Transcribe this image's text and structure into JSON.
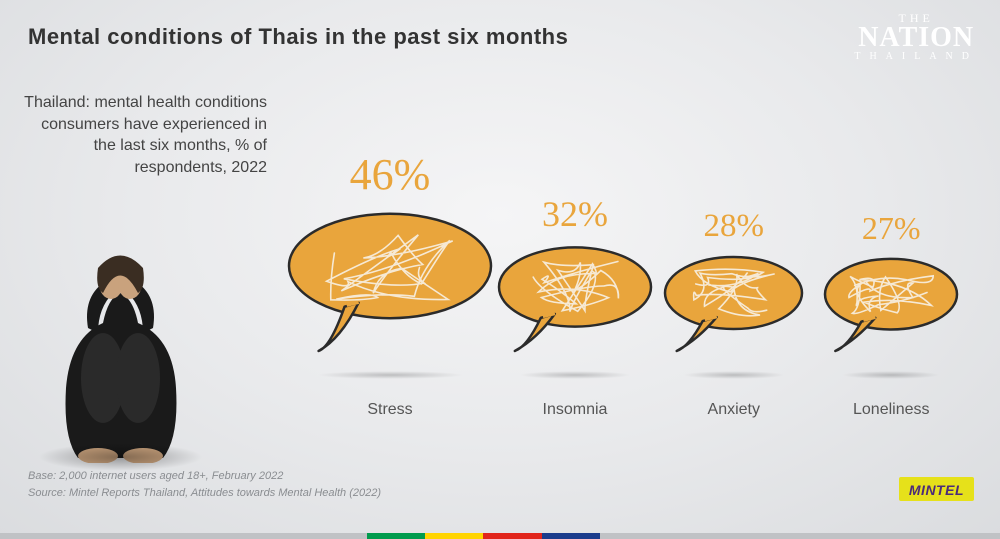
{
  "title": "Mental conditions of Thais in the past six months",
  "subtitle": "Thailand: mental health conditions consumers have experienced in the last six months, % of respondents, 2022",
  "logo": {
    "line1": "THE",
    "line2": "NATION",
    "line3": "THAILAND"
  },
  "chart": {
    "type": "bubble-size-bar",
    "bubble_fill": "#e9a53c",
    "bubble_stroke": "#2b2b2b",
    "bubble_stroke_width": 2.5,
    "scribble_color": "#f7f1e4",
    "pct_color": "#e9a53c",
    "pct_font_family": "Georgia",
    "label_color": "#555555",
    "label_fontsize": 16,
    "max_bubble_width": 210,
    "min_bubble_width": 135,
    "shadow_color": "rgba(0,0,0,0.2)",
    "conditions": [
      {
        "label": "Stress",
        "value": 46,
        "pct_fontsize": 44,
        "bubble_w": 210,
        "bubble_h": 145
      },
      {
        "label": "Insomnia",
        "value": 32,
        "pct_fontsize": 36,
        "bubble_w": 160,
        "bubble_h": 110
      },
      {
        "label": "Anxiety",
        "value": 28,
        "pct_fontsize": 33,
        "bubble_w": 145,
        "bubble_h": 100
      },
      {
        "label": "Loneliness",
        "value": 27,
        "pct_fontsize": 32,
        "bubble_w": 140,
        "bubble_h": 98
      }
    ]
  },
  "footnotes": {
    "base": "Base: 2,000 internet users aged 18+, February 2022",
    "source": "Source: Mintel Reports Thailand, Attitudes towards Mental Health (2022)"
  },
  "mintel_label": "MINTEL",
  "stripe_colors": [
    "#c0c2c5",
    "#009b4d",
    "#ffd400",
    "#e1251b",
    "#1b3c8c",
    "#c0c2c5"
  ],
  "stripe_flex": [
    2.2,
    0.35,
    0.35,
    0.35,
    0.35,
    2.4
  ],
  "background": {
    "radial_center": "#f5f5f6",
    "radial_mid": "#e9eaec",
    "radial_edge": "#d7d9dc"
  },
  "person_colors": {
    "clothing": "#1a1a1a",
    "skin": "#c9a27d",
    "hair": "#3a2d22"
  }
}
